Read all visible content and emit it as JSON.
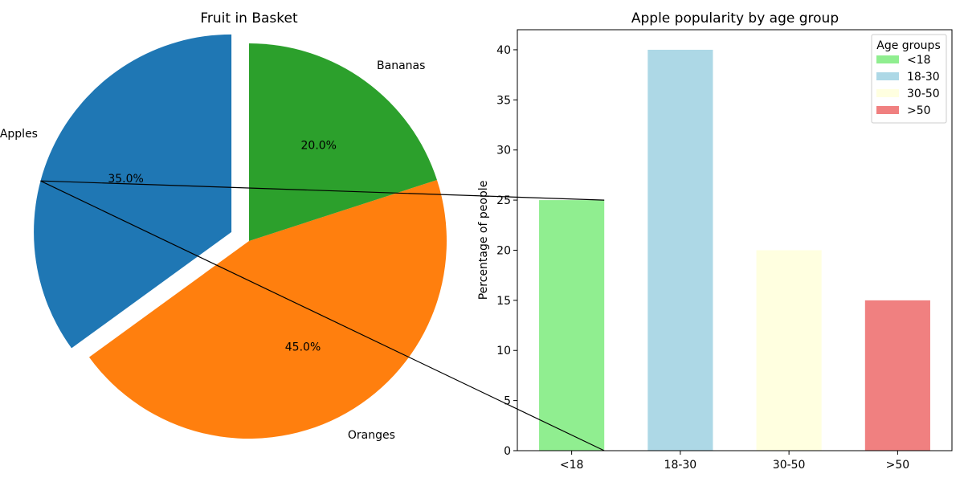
{
  "chart_data": [
    {
      "type": "pie",
      "title": "Fruit in Basket",
      "labels": [
        "Apples",
        "Oranges",
        "Bananas"
      ],
      "values": [
        35,
        45,
        20
      ],
      "autopct": [
        "35.0%",
        "45.0%",
        "20.0%"
      ],
      "colors": [
        "#1f77b4",
        "#ff7f0e",
        "#2ca02c"
      ],
      "explode": [
        0.1,
        0,
        0
      ],
      "start_angle_deg": 90
    },
    {
      "type": "bar",
      "title": "Apple popularity by age group",
      "categories": [
        "<18",
        "18-30",
        "30-50",
        ">50"
      ],
      "values": [
        25,
        40,
        20,
        15
      ],
      "colors": [
        "#90ee90",
        "#add8e6",
        "#ffffe0",
        "#f08080"
      ],
      "xlabel": "",
      "ylabel": "Percentage of people",
      "ylim": [
        0,
        42
      ],
      "yticks": [
        0,
        5,
        10,
        15,
        20,
        25,
        30,
        35,
        40
      ],
      "grid": false,
      "legend": {
        "title": "Age groups",
        "entries": [
          "<18",
          "18-30",
          "30-50",
          ">50"
        ],
        "placement": "top-right"
      }
    }
  ]
}
